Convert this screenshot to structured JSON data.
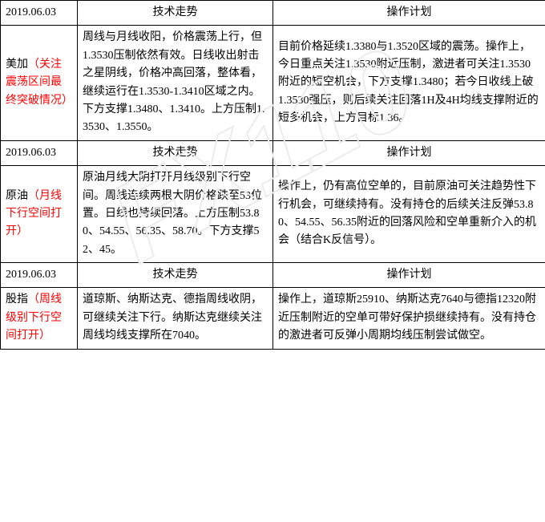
{
  "headers": {
    "tech": "技术走势",
    "plan": "操作计划"
  },
  "sections": [
    {
      "date": "2019.06.03",
      "name_plain": "美加",
      "name_red": "（关注震荡区间最终突破情况）",
      "tech": "周线与月线收阳，价格震荡上行，但1.3530压制依然有效。日线收出射击之星阴线，价格冲高回落，整体看，继续运行在1.3530-1.3410区域之内。下方支撑1.3480、1.3410。上方压制1.3530、1.3550。",
      "plan": "目前价格延续1.3380与1.3520区域的震荡。操作上，今日重点关注1.3530附近压制，激进者可关注1.3530附近的短空机会，下方支撑1.3480；若今日收线上破1.3530强压，则后续关注回落1H及4H均线支撑附近的短多机会，上方目标1.36。"
    },
    {
      "date": "2019.06.03",
      "name_plain": "原油",
      "name_red": "（月线下行空间打开）",
      "tech": "原油月线大阴打开月线级别下行空间。周线连续两根大阴价格跌至53位置。日线也持续回落。上方压制53.80、54.55、56.35、58.70。下方支撑52、45。",
      "plan": "操作上，仍有高位空单的，目前原油可关注趋势性下行机会，可继续持有。没有持仓的后续关注反弹53.80、54.55、56.35附近的回落风险和空单重新介入的机会（结合K反信号）。"
    },
    {
      "date": "2019.06.03",
      "name_plain": "股指",
      "name_red": "（周线级别下行空间打开）",
      "tech": "道琼斯、纳斯达克、德指周线收阴，可继续关注下行。纳斯达克继续关注周线均线支撑所在7040。",
      "plan": "操作上，道琼斯25910、纳斯达克7640与德指12320附近压制附近的空单可带好保护损继续持有。没有持仓的激进者可反弹小周期均线压制尝试做空。"
    }
  ],
  "style": {
    "border_color": "#000000",
    "text_color": "#000000",
    "red_color": "#ff0000",
    "bg_color": "#ffffff",
    "wm_fill": "#ececec",
    "wm_text": "FX110",
    "font_size": 14
  }
}
